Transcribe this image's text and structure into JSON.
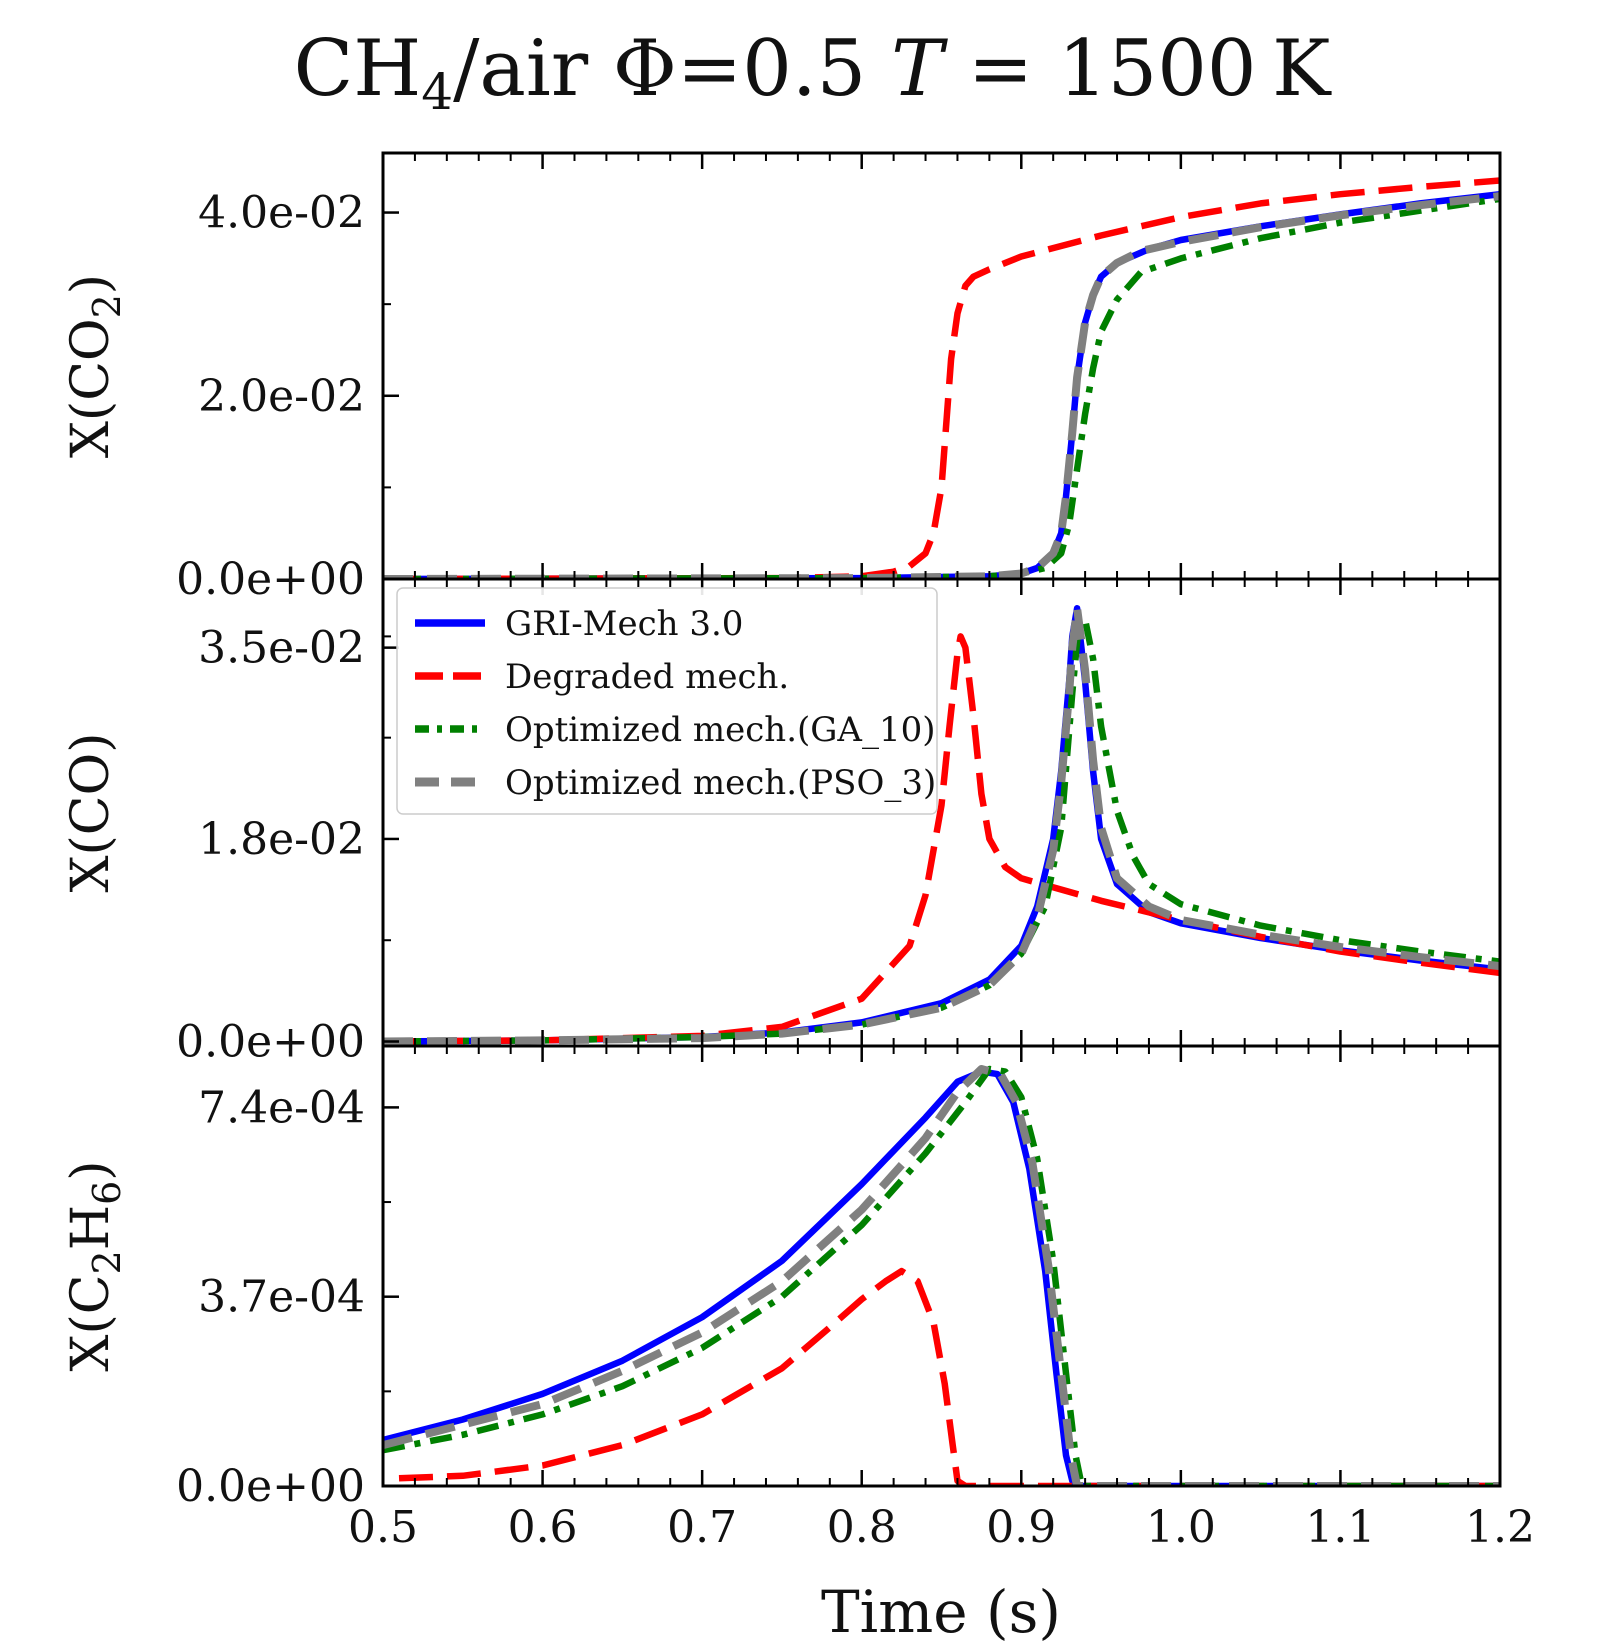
{
  "title": {
    "base": "CH",
    "sub": "4",
    "rest": "/air Φ=0.5 ",
    "T": "T",
    "eq": " = 1500 K"
  },
  "colors": {
    "gri": "#0000ff",
    "degraded": "#ff0000",
    "ga": "#008000",
    "pso": "#808080"
  },
  "legend": [
    {
      "label": "GRI-Mech 3.0",
      "color": "#0000ff",
      "style": "solid"
    },
    {
      "label": "Degraded mech.",
      "color": "#ff0000",
      "style": "dashed"
    },
    {
      "label": "Optimized mech.(GA_10)",
      "color": "#008000",
      "style": "dashdot"
    },
    {
      "label": "Optimized mech.(PSO_3)",
      "color": "#808080",
      "style": "dashed"
    }
  ],
  "chart_data": [
    {
      "type": "line",
      "ylabel_base": "X(CO",
      "ylabel_sub": "2",
      "ylabel_end": ")",
      "xlim": [
        0.5,
        1.2
      ],
      "ylim": [
        0.0,
        0.0465
      ],
      "yticks": [
        {
          "value": 0.0,
          "label": "0.0e+00"
        },
        {
          "value": 0.02,
          "label": "2.0e-02"
        },
        {
          "value": 0.04,
          "label": "4.0e-02"
        }
      ],
      "legend_location": "none",
      "series": [
        {
          "name": "GRI-Mech 3.0",
          "x": [
            0.5,
            0.8,
            0.88,
            0.9,
            0.91,
            0.92,
            0.925,
            0.928,
            0.932,
            0.935,
            0.94,
            0.945,
            0.95,
            0.96,
            0.98,
            1.0,
            1.05,
            1.1,
            1.15,
            1.2
          ],
          "y": [
            0,
            0.0001,
            0.0003,
            0.0006,
            0.0012,
            0.0028,
            0.005,
            0.009,
            0.016,
            0.022,
            0.028,
            0.031,
            0.033,
            0.0345,
            0.036,
            0.037,
            0.0385,
            0.0398,
            0.041,
            0.042
          ]
        },
        {
          "name": "Degraded mech.",
          "x": [
            0.5,
            0.75,
            0.8,
            0.82,
            0.83,
            0.84,
            0.845,
            0.85,
            0.853,
            0.856,
            0.86,
            0.865,
            0.87,
            0.88,
            0.9,
            0.95,
            1.0,
            1.05,
            1.1,
            1.15,
            1.2
          ],
          "y": [
            0,
            0.0001,
            0.0003,
            0.0008,
            0.0014,
            0.0028,
            0.005,
            0.01,
            0.017,
            0.024,
            0.029,
            0.032,
            0.033,
            0.0338,
            0.0352,
            0.0375,
            0.0395,
            0.041,
            0.042,
            0.0428,
            0.0435
          ]
        },
        {
          "name": "Optimized mech.(GA_10)",
          "x": [
            0.5,
            0.8,
            0.88,
            0.9,
            0.915,
            0.925,
            0.93,
            0.935,
            0.94,
            0.945,
            0.95,
            0.96,
            0.975,
            1.0,
            1.05,
            1.1,
            1.15,
            1.2
          ],
          "y": [
            0,
            0.0001,
            0.0003,
            0.0006,
            0.0012,
            0.0028,
            0.006,
            0.012,
            0.018,
            0.023,
            0.027,
            0.0305,
            0.0335,
            0.035,
            0.0372,
            0.0389,
            0.0402,
            0.0415
          ]
        },
        {
          "name": "Optimized mech.(PSO_3)",
          "x": [
            0.5,
            0.8,
            0.88,
            0.9,
            0.91,
            0.92,
            0.925,
            0.928,
            0.932,
            0.935,
            0.94,
            0.945,
            0.95,
            0.96,
            0.975,
            1.0,
            1.05,
            1.1,
            1.15,
            1.2
          ],
          "y": [
            0,
            0.0001,
            0.0003,
            0.0006,
            0.0012,
            0.0028,
            0.005,
            0.009,
            0.016,
            0.022,
            0.028,
            0.031,
            0.033,
            0.0345,
            0.0358,
            0.0368,
            0.0384,
            0.0397,
            0.0408,
            0.0418
          ]
        }
      ]
    },
    {
      "type": "line",
      "ylabel_base": "X(CO)",
      "ylabel_sub": "",
      "ylabel_end": "",
      "xlim": [
        0.5,
        1.2
      ],
      "ylim": [
        -0.0004,
        0.0411
      ],
      "yticks": [
        {
          "value": 0.0,
          "label": "0.0e+00"
        },
        {
          "value": 0.018,
          "label": "1.8e-02"
        },
        {
          "value": 0.035,
          "label": "3.5e-02"
        }
      ],
      "legend_location": "upper left",
      "series": [
        {
          "name": "GRI-Mech 3.0",
          "x": [
            0.5,
            0.6,
            0.7,
            0.75,
            0.8,
            0.85,
            0.88,
            0.9,
            0.91,
            0.92,
            0.925,
            0.93,
            0.932,
            0.935,
            0.94,
            0.945,
            0.95,
            0.96,
            0.98,
            1.0,
            1.05,
            1.1,
            1.15,
            1.2
          ],
          "y": [
            0,
            0.0001,
            0.0004,
            0.0008,
            0.0017,
            0.0034,
            0.0055,
            0.0085,
            0.012,
            0.018,
            0.024,
            0.032,
            0.036,
            0.0385,
            0.032,
            0.024,
            0.018,
            0.014,
            0.0115,
            0.0105,
            0.0092,
            0.0081,
            0.0072,
            0.0064
          ]
        },
        {
          "name": "Degraded mech.",
          "x": [
            0.5,
            0.6,
            0.7,
            0.75,
            0.8,
            0.83,
            0.84,
            0.85,
            0.855,
            0.86,
            0.862,
            0.865,
            0.87,
            0.875,
            0.88,
            0.89,
            0.9,
            0.95,
            1.0,
            1.05,
            1.1,
            1.15,
            1.2
          ],
          "y": [
            0,
            0.0001,
            0.0005,
            0.0013,
            0.0038,
            0.0085,
            0.013,
            0.021,
            0.028,
            0.0345,
            0.036,
            0.035,
            0.029,
            0.022,
            0.018,
            0.0155,
            0.0145,
            0.0125,
            0.0108,
            0.0093,
            0.008,
            0.007,
            0.0061
          ]
        },
        {
          "name": "Optimized mech.(GA_10)",
          "x": [
            0.5,
            0.6,
            0.7,
            0.75,
            0.8,
            0.85,
            0.88,
            0.9,
            0.915,
            0.925,
            0.932,
            0.936,
            0.94,
            0.945,
            0.95,
            0.96,
            0.97,
            0.98,
            1.0,
            1.05,
            1.1,
            1.15,
            1.2
          ],
          "y": [
            0,
            0.0001,
            0.0004,
            0.0007,
            0.0015,
            0.003,
            0.005,
            0.0078,
            0.012,
            0.019,
            0.031,
            0.037,
            0.0375,
            0.034,
            0.028,
            0.0205,
            0.0165,
            0.014,
            0.0122,
            0.0103,
            0.009,
            0.008,
            0.0071
          ]
        },
        {
          "name": "Optimized mech.(PSO_3)",
          "x": [
            0.5,
            0.6,
            0.7,
            0.75,
            0.8,
            0.85,
            0.88,
            0.9,
            0.91,
            0.92,
            0.925,
            0.93,
            0.932,
            0.935,
            0.94,
            0.945,
            0.95,
            0.96,
            0.98,
            1.0,
            1.05,
            1.1,
            1.15,
            1.2
          ],
          "y": [
            0,
            0.0001,
            0.0003,
            0.0007,
            0.0015,
            0.003,
            0.005,
            0.0078,
            0.011,
            0.017,
            0.023,
            0.031,
            0.035,
            0.0385,
            0.033,
            0.025,
            0.019,
            0.0145,
            0.012,
            0.0108,
            0.0095,
            0.0084,
            0.0075,
            0.0067
          ]
        }
      ]
    },
    {
      "type": "line",
      "ylabel_base": "X(C",
      "ylabel_sub": "2",
      "ylabel_mid": "H",
      "ylabel_sub2": "6",
      "ylabel_end": ")",
      "xlim": [
        0.5,
        1.2
      ],
      "ylim": [
        0.0,
        0.00086
      ],
      "yticks": [
        {
          "value": 0.0,
          "label": "0.0e+00"
        },
        {
          "value": 0.00037,
          "label": "3.7e-04"
        },
        {
          "value": 0.00074,
          "label": "7.4e-04"
        }
      ],
      "legend_location": "none",
      "series": [
        {
          "name": "GRI-Mech 3.0",
          "x": [
            0.5,
            0.55,
            0.6,
            0.65,
            0.7,
            0.75,
            0.8,
            0.84,
            0.86,
            0.875,
            0.885,
            0.895,
            0.905,
            0.915,
            0.922,
            0.928,
            0.932,
            0.935,
            0.95,
            1.0,
            1.1,
            1.2
          ],
          "y": [
            9e-05,
            0.00013,
            0.00018,
            0.000245,
            0.00033,
            0.00044,
            0.00059,
            0.00072,
            0.00079,
            0.00081,
            0.000805,
            0.00075,
            0.00062,
            0.00042,
            0.00022,
            6e-05,
            1e-05,
            0,
            0,
            0,
            0,
            0
          ]
        },
        {
          "name": "Degraded mech.",
          "x": [
            0.51,
            0.55,
            0.6,
            0.65,
            0.7,
            0.75,
            0.78,
            0.8,
            0.815,
            0.825,
            0.835,
            0.845,
            0.852,
            0.857,
            0.86,
            0.865,
            0.9,
            1.0,
            1.1,
            1.2
          ],
          "y": [
            1.5e-05,
            2e-05,
            4e-05,
            8e-05,
            0.00014,
            0.00023,
            0.00031,
            0.000365,
            0.0004,
            0.00042,
            0.0004,
            0.00032,
            0.0002,
            8e-05,
            1e-05,
            0,
            0,
            0,
            0,
            0
          ]
        },
        {
          "name": "Optimized mech.(GA_10)",
          "x": [
            0.5,
            0.55,
            0.6,
            0.65,
            0.7,
            0.75,
            0.8,
            0.84,
            0.865,
            0.88,
            0.89,
            0.9,
            0.91,
            0.92,
            0.928,
            0.934,
            0.938,
            0.95,
            1.0,
            1.1,
            1.2
          ],
          "y": [
            7e-05,
            0.0001,
            0.00014,
            0.000195,
            0.00027,
            0.00037,
            0.00051,
            0.00065,
            0.00075,
            0.000815,
            0.00081,
            0.00076,
            0.00064,
            0.00044,
            0.00022,
            6e-05,
            0,
            0,
            0,
            0,
            0
          ]
        },
        {
          "name": "Optimized mech.(PSO_3)",
          "x": [
            0.5,
            0.55,
            0.6,
            0.65,
            0.7,
            0.75,
            0.8,
            0.84,
            0.86,
            0.875,
            0.887,
            0.897,
            0.907,
            0.917,
            0.925,
            0.931,
            0.935,
            0.95,
            1.0,
            1.1,
            1.2
          ],
          "y": [
            8e-05,
            0.00012,
            0.00016,
            0.000225,
            0.0003,
            0.0004,
            0.00054,
            0.00068,
            0.00077,
            0.000815,
            0.000805,
            0.00075,
            0.00063,
            0.00043,
            0.00022,
            6e-05,
            0,
            0,
            0,
            0,
            0
          ]
        }
      ]
    }
  ],
  "xaxis": {
    "label": "Time (s)",
    "ticks": [
      {
        "value": 0.5,
        "label": "0.5"
      },
      {
        "value": 0.6,
        "label": "0.6"
      },
      {
        "value": 0.7,
        "label": "0.7"
      },
      {
        "value": 0.8,
        "label": "0.8"
      },
      {
        "value": 0.9,
        "label": "0.9"
      },
      {
        "value": 1.0,
        "label": "1.0"
      },
      {
        "value": 1.1,
        "label": "1.1"
      },
      {
        "value": 1.2,
        "label": "1.2"
      }
    ]
  }
}
